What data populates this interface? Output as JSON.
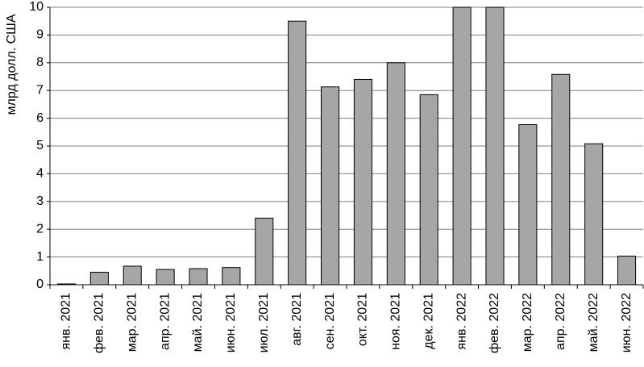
{
  "chart_data": {
    "type": "bar",
    "y_label": "млрд долл. США",
    "categories": [
      "янв. 2021",
      "фев. 2021",
      "мар. 2021",
      "апр. 2021",
      "май. 2021",
      "июн. 2021",
      "июл. 2021",
      "авг. 2021",
      "сен. 2021",
      "окт. 2021",
      "ноя. 2021",
      "дек. 2021",
      "янв. 2022",
      "фев. 2022",
      "мар. 2022",
      "апр. 2022",
      "май. 2022",
      "июн. 2022"
    ],
    "values": [
      0.03,
      0.45,
      0.67,
      0.55,
      0.58,
      0.62,
      2.4,
      9.5,
      7.13,
      7.4,
      8.0,
      6.85,
      10,
      10,
      5.77,
      7.58,
      5.08,
      1.03
    ],
    "color": "#a6a6a6",
    "ylim": [
      0,
      10
    ],
    "yticks": [
      0,
      1,
      2,
      3,
      4,
      5,
      6,
      7,
      8,
      9,
      10
    ],
    "grid": true
  }
}
